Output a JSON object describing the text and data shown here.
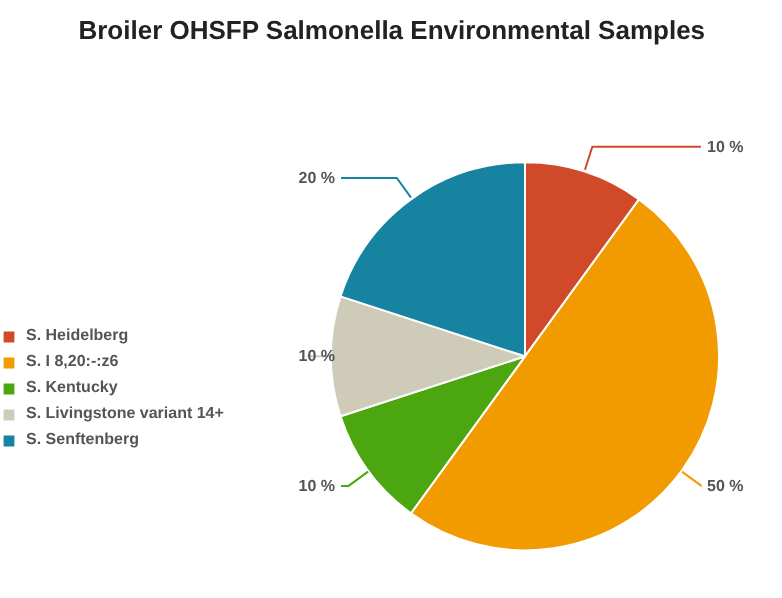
{
  "chart_data": {
    "type": "pie",
    "title": "Broiler OHSFP Salmonella Environmental Samples",
    "categories": [
      "S. Heidelberg",
      "S. I 8,20:-:z6",
      "S. Kentucky",
      "S. Livingstone variant 14+",
      "S. Senftenberg"
    ],
    "values": [
      10,
      50,
      10,
      10,
      20
    ],
    "colors": [
      "#d04a2a",
      "#f29b00",
      "#4ba60f",
      "#cfcbb9",
      "#1683a0"
    ],
    "value_labels": [
      "10 %",
      "50 %",
      "10 %",
      "10 %",
      "20 %"
    ],
    "legend": "left"
  }
}
